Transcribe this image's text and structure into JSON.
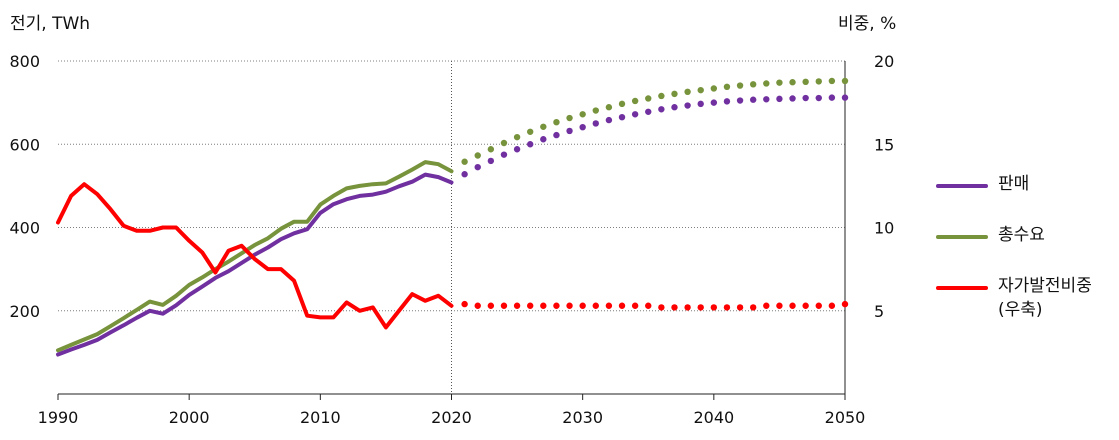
{
  "chart_data": {
    "type": "line",
    "left_axis_label": "전기, TWh",
    "right_axis_label": "비중, %",
    "left_ticks": [
      200,
      400,
      600,
      800
    ],
    "right_ticks": [
      5,
      10,
      15,
      20
    ],
    "x_ticks": [
      1990,
      2000,
      2010,
      2020,
      2030,
      2040,
      2050
    ],
    "xlim": [
      1990,
      2050
    ],
    "ylim_left": [
      0,
      800
    ],
    "ylim_right": [
      0,
      20
    ],
    "projection_divider_year": 2020,
    "series": [
      {
        "name": "판매",
        "axis": "left",
        "color": "#7030a0",
        "historical": [
          [
            1990,
            95
          ],
          [
            1991,
            107
          ],
          [
            1992,
            118
          ],
          [
            1993,
            130
          ],
          [
            1994,
            148
          ],
          [
            1995,
            165
          ],
          [
            1996,
            183
          ],
          [
            1997,
            200
          ],
          [
            1998,
            193
          ],
          [
            1999,
            213
          ],
          [
            2000,
            238
          ],
          [
            2001,
            258
          ],
          [
            2002,
            279
          ],
          [
            2003,
            295
          ],
          [
            2004,
            315
          ],
          [
            2005,
            335
          ],
          [
            2006,
            352
          ],
          [
            2007,
            372
          ],
          [
            2008,
            386
          ],
          [
            2009,
            396
          ],
          [
            2010,
            435
          ],
          [
            2011,
            456
          ],
          [
            2012,
            468
          ],
          [
            2013,
            476
          ],
          [
            2014,
            479
          ],
          [
            2015,
            486
          ],
          [
            2016,
            499
          ],
          [
            2017,
            510
          ],
          [
            2018,
            527
          ],
          [
            2019,
            521
          ],
          [
            2020,
            508
          ]
        ],
        "projected": [
          [
            2021,
            528
          ],
          [
            2022,
            545
          ],
          [
            2023,
            560
          ],
          [
            2024,
            575
          ],
          [
            2025,
            588
          ],
          [
            2026,
            600
          ],
          [
            2027,
            612
          ],
          [
            2028,
            622
          ],
          [
            2029,
            632
          ],
          [
            2030,
            641
          ],
          [
            2031,
            650
          ],
          [
            2032,
            658
          ],
          [
            2033,
            665
          ],
          [
            2034,
            672
          ],
          [
            2035,
            678
          ],
          [
            2036,
            684
          ],
          [
            2037,
            689
          ],
          [
            2038,
            693
          ],
          [
            2039,
            697
          ],
          [
            2040,
            700
          ],
          [
            2041,
            703
          ],
          [
            2042,
            705
          ],
          [
            2043,
            707
          ],
          [
            2044,
            708
          ],
          [
            2045,
            709
          ],
          [
            2046,
            710
          ],
          [
            2047,
            711
          ],
          [
            2048,
            711
          ],
          [
            2049,
            712
          ],
          [
            2050,
            712
          ]
        ]
      },
      {
        "name": "총수요",
        "axis": "left",
        "color": "#77933c",
        "historical": [
          [
            1990,
            105
          ],
          [
            1991,
            118
          ],
          [
            1992,
            131
          ],
          [
            1993,
            144
          ],
          [
            1994,
            163
          ],
          [
            1995,
            182
          ],
          [
            1996,
            202
          ],
          [
            1997,
            222
          ],
          [
            1998,
            214
          ],
          [
            1999,
            236
          ],
          [
            2000,
            262
          ],
          [
            2001,
            280
          ],
          [
            2002,
            300
          ],
          [
            2003,
            318
          ],
          [
            2004,
            338
          ],
          [
            2005,
            358
          ],
          [
            2006,
            374
          ],
          [
            2007,
            397
          ],
          [
            2008,
            414
          ],
          [
            2009,
            414
          ],
          [
            2010,
            455
          ],
          [
            2011,
            476
          ],
          [
            2012,
            494
          ],
          [
            2013,
            500
          ],
          [
            2014,
            504
          ],
          [
            2015,
            506
          ],
          [
            2016,
            522
          ],
          [
            2017,
            539
          ],
          [
            2018,
            557
          ],
          [
            2019,
            552
          ],
          [
            2020,
            535
          ]
        ],
        "projected": [
          [
            2021,
            558
          ],
          [
            2022,
            573
          ],
          [
            2023,
            588
          ],
          [
            2024,
            603
          ],
          [
            2025,
            617
          ],
          [
            2026,
            630
          ],
          [
            2027,
            642
          ],
          [
            2028,
            653
          ],
          [
            2029,
            663
          ],
          [
            2030,
            672
          ],
          [
            2031,
            681
          ],
          [
            2032,
            689
          ],
          [
            2033,
            697
          ],
          [
            2034,
            704
          ],
          [
            2035,
            710
          ],
          [
            2036,
            716
          ],
          [
            2037,
            721
          ],
          [
            2038,
            726
          ],
          [
            2039,
            730
          ],
          [
            2040,
            734
          ],
          [
            2041,
            738
          ],
          [
            2042,
            741
          ],
          [
            2043,
            744
          ],
          [
            2044,
            746
          ],
          [
            2045,
            748
          ],
          [
            2046,
            749
          ],
          [
            2047,
            750
          ],
          [
            2048,
            751
          ],
          [
            2049,
            752
          ],
          [
            2050,
            752
          ]
        ]
      },
      {
        "name": "자가발전비중 (우축)",
        "axis": "right",
        "color": "#ff0000",
        "historical": [
          [
            1990,
            10.3
          ],
          [
            1991,
            11.9
          ],
          [
            1992,
            12.6
          ],
          [
            1993,
            12.0
          ],
          [
            1994,
            11.1
          ],
          [
            1995,
            10.1
          ],
          [
            1996,
            9.8
          ],
          [
            1997,
            9.8
          ],
          [
            1998,
            10.0
          ],
          [
            1999,
            10.0
          ],
          [
            2000,
            9.2
          ],
          [
            2001,
            8.5
          ],
          [
            2002,
            7.3
          ],
          [
            2003,
            8.6
          ],
          [
            2004,
            8.9
          ],
          [
            2005,
            8.1
          ],
          [
            2006,
            7.5
          ],
          [
            2007,
            7.5
          ],
          [
            2008,
            6.8
          ],
          [
            2009,
            4.7
          ],
          [
            2010,
            4.6
          ],
          [
            2011,
            4.6
          ],
          [
            2012,
            5.5
          ],
          [
            2013,
            5.0
          ],
          [
            2014,
            5.2
          ],
          [
            2015,
            4.0
          ],
          [
            2016,
            5.0
          ],
          [
            2017,
            6.0
          ],
          [
            2018,
            5.6
          ],
          [
            2019,
            5.9
          ],
          [
            2020,
            5.3
          ]
        ],
        "projected": [
          [
            2021,
            5.4
          ],
          [
            2022,
            5.3
          ],
          [
            2023,
            5.3
          ],
          [
            2024,
            5.3
          ],
          [
            2025,
            5.3
          ],
          [
            2026,
            5.3
          ],
          [
            2027,
            5.3
          ],
          [
            2028,
            5.3
          ],
          [
            2029,
            5.3
          ],
          [
            2030,
            5.3
          ],
          [
            2031,
            5.3
          ],
          [
            2032,
            5.3
          ],
          [
            2033,
            5.3
          ],
          [
            2034,
            5.3
          ],
          [
            2035,
            5.3
          ],
          [
            2036,
            5.2
          ],
          [
            2037,
            5.2
          ],
          [
            2038,
            5.2
          ],
          [
            2039,
            5.2
          ],
          [
            2040,
            5.2
          ],
          [
            2041,
            5.2
          ],
          [
            2042,
            5.2
          ],
          [
            2043,
            5.2
          ],
          [
            2044,
            5.3
          ],
          [
            2045,
            5.3
          ],
          [
            2046,
            5.3
          ],
          [
            2047,
            5.3
          ],
          [
            2048,
            5.3
          ],
          [
            2049,
            5.3
          ],
          [
            2050,
            5.4
          ]
        ]
      }
    ],
    "legend": {
      "placement": "right",
      "items": [
        {
          "label": "판매",
          "color": "#7030a0"
        },
        {
          "label": "총수요",
          "color": "#77933c"
        },
        {
          "label": "자가발전비중 (우축)",
          "color": "#ff0000"
        }
      ]
    }
  }
}
